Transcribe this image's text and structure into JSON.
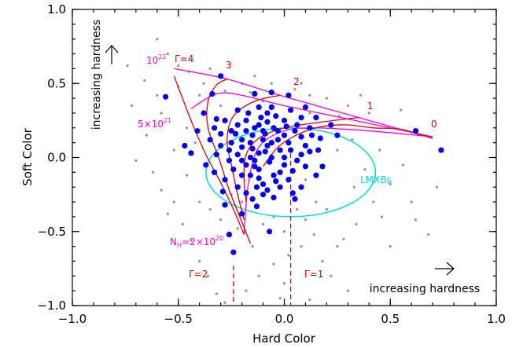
{
  "chart_data": {
    "type": "scatter",
    "xlabel": "Hard Color",
    "ylabel": "Soft Color",
    "xlim": [
      -1.0,
      1.0
    ],
    "ylim": [
      -1.0,
      1.0
    ],
    "x_ticks": [
      "−1.0",
      "−0.5",
      "0.0",
      "0.5",
      "1.0"
    ],
    "y_ticks": [
      "−1.0",
      "−0.5",
      "0.0",
      "0.5",
      "1.0"
    ],
    "x_tick_values": [
      -1.0,
      -0.5,
      0.0,
      0.5,
      1.0
    ],
    "y_tick_values": [
      -1.0,
      -0.5,
      0.0,
      0.5,
      1.0
    ],
    "grid": false,
    "annotations": {
      "increasing_hardness_y": "increasing hardness",
      "increasing_hardness_x": "increasing hardness",
      "lmxb_label": "LMXBs",
      "gamma_4": "Γ=4",
      "gamma_3": "3",
      "gamma_2": "2",
      "gamma_1": "1",
      "gamma_0": "0",
      "nh_1e22": "10",
      "nh_1e22_sup": "22",
      "nh_5e21": "5×10",
      "nh_5e21_sup": "21",
      "nh_2e20_prefix": "N",
      "nh_2e20_sub": "H",
      "nh_2e20_mid": "=2×10",
      "nh_2e20_sup": "20",
      "gamma2_dashed": "Γ=2",
      "gamma1_dashed": "Γ=1"
    },
    "colors": {
      "sources_main": "#0000ee",
      "sources_background": "#9a9a9a",
      "gamma_tracks": "#dd0000",
      "nh_tracks": "#ee00ee",
      "lmxb_ellipse": "#00dddd"
    },
    "lmxb_ellipse": {
      "cx": 0.03,
      "cy": -0.1,
      "rx": 0.4,
      "ry": 0.3
    },
    "gamma_tracks": [
      {
        "name": "Γ=4",
        "points": [
          [
            -0.52,
            0.55
          ],
          [
            -0.44,
            0.25
          ],
          [
            -0.37,
            0.02
          ],
          [
            -0.3,
            -0.17
          ],
          [
            -0.24,
            -0.35
          ],
          [
            -0.19,
            -0.52
          ]
        ]
      },
      {
        "name": "3",
        "points": [
          [
            -0.27,
            0.53
          ],
          [
            -0.32,
            0.49
          ],
          [
            -0.36,
            0.38
          ],
          [
            -0.36,
            0.2
          ],
          [
            -0.31,
            0.0
          ],
          [
            -0.26,
            -0.22
          ],
          [
            -0.21,
            -0.4
          ],
          [
            -0.16,
            -0.58
          ]
        ]
      },
      {
        "name": "2",
        "points": [
          [
            -0.02,
            0.42
          ],
          [
            -0.14,
            0.38
          ],
          [
            -0.24,
            0.28
          ],
          [
            -0.27,
            0.12
          ],
          [
            -0.25,
            -0.05
          ],
          [
            -0.22,
            -0.25
          ],
          [
            -0.19,
            -0.42
          ]
        ]
      },
      {
        "name": "1",
        "points": [
          [
            0.35,
            0.27
          ],
          [
            0.18,
            0.24
          ],
          [
            0.0,
            0.2
          ],
          [
            -0.12,
            0.13
          ],
          [
            -0.18,
            0.02
          ],
          [
            -0.19,
            -0.14
          ],
          [
            -0.18,
            -0.3
          ]
        ]
      },
      {
        "name": "0",
        "points": [
          [
            0.7,
            0.13
          ],
          [
            0.55,
            0.19
          ],
          [
            0.42,
            0.2
          ],
          [
            0.3,
            0.22
          ],
          [
            0.18,
            0.21
          ],
          [
            0.07,
            0.16
          ],
          [
            -0.03,
            0.07
          ],
          [
            -0.1,
            -0.06
          ]
        ]
      }
    ],
    "nh_tracks": [
      {
        "name": "1e22",
        "points": [
          [
            -0.52,
            0.6
          ],
          [
            -0.27,
            0.53
          ],
          [
            -0.02,
            0.42
          ],
          [
            0.35,
            0.27
          ],
          [
            0.7,
            0.13
          ]
        ]
      },
      {
        "name": "5e21",
        "points": [
          [
            -0.44,
            0.33
          ],
          [
            -0.32,
            0.43
          ],
          [
            -0.2,
            0.42
          ],
          [
            0.0,
            0.35
          ],
          [
            0.3,
            0.26
          ],
          [
            0.7,
            0.14
          ]
        ]
      },
      {
        "name": "2e20",
        "points": [
          [
            -0.19,
            -0.52
          ],
          [
            -0.17,
            -0.18
          ],
          [
            -0.12,
            0.07
          ],
          [
            0.0,
            0.18
          ],
          [
            0.15,
            0.2
          ],
          [
            0.4,
            0.18
          ],
          [
            0.7,
            0.14
          ]
        ]
      }
    ],
    "dashed_lines": [
      {
        "name": "Γ=2",
        "x": -0.24,
        "y_from": -0.73,
        "y_to": -1.0
      },
      {
        "name": "Γ=1",
        "x": 0.03,
        "y_from": 0.03,
        "y_to": -1.0
      }
    ],
    "series": [
      {
        "name": "sources",
        "points": [
          [
            0.74,
            0.05
          ],
          [
            0.62,
            0.18
          ],
          [
            -0.56,
            0.41
          ],
          [
            -0.34,
            0.43
          ],
          [
            -0.3,
            0.55
          ],
          [
            -0.14,
            0.43
          ],
          [
            -0.12,
            0.34
          ],
          [
            -0.06,
            0.44
          ],
          [
            0.02,
            0.42
          ],
          [
            0.1,
            0.34
          ],
          [
            -0.22,
            0.32
          ],
          [
            -0.08,
            0.3
          ],
          [
            0.08,
            0.27
          ],
          [
            0.22,
            0.22
          ],
          [
            -0.32,
            0.26
          ],
          [
            -0.25,
            0.18
          ],
          [
            -0.3,
            0.16
          ],
          [
            -0.41,
            0.18
          ],
          [
            -0.47,
            0.08
          ],
          [
            -0.44,
            0.03
          ],
          [
            -0.37,
            -0.05
          ],
          [
            -0.33,
            -0.1
          ],
          [
            -0.28,
            -0.15
          ],
          [
            -0.22,
            -0.2
          ],
          [
            -0.18,
            -0.24
          ],
          [
            -0.15,
            -0.28
          ],
          [
            -0.13,
            -0.33
          ],
          [
            -0.2,
            -0.38
          ],
          [
            -0.28,
            -0.32
          ],
          [
            -0.05,
            -0.27
          ],
          [
            0.05,
            -0.28
          ],
          [
            0.08,
            -0.2
          ],
          [
            0.15,
            -0.12
          ],
          [
            0.18,
            -0.06
          ],
          [
            0.12,
            0.04
          ],
          [
            0.17,
            0.13
          ],
          [
            0.25,
            0.15
          ],
          [
            -0.07,
            -0.5
          ],
          [
            -0.24,
            -0.64
          ],
          [
            -0.26,
            -0.52
          ],
          [
            -0.25,
            0.1
          ],
          [
            -0.2,
            0.12
          ],
          [
            -0.15,
            0.15
          ],
          [
            -0.1,
            0.18
          ],
          [
            -0.05,
            0.2
          ],
          [
            0.0,
            0.15
          ],
          [
            0.05,
            0.18
          ],
          [
            0.02,
            0.1
          ],
          [
            -0.02,
            0.05
          ],
          [
            -0.08,
            0.08
          ],
          [
            -0.12,
            0.03
          ],
          [
            -0.16,
            0.0
          ],
          [
            -0.22,
            0.02
          ],
          [
            -0.18,
            -0.05
          ],
          [
            -0.12,
            -0.08
          ],
          [
            -0.07,
            -0.03
          ],
          [
            0.0,
            -0.05
          ],
          [
            0.06,
            -0.02
          ],
          [
            0.1,
            0.08
          ],
          [
            0.08,
            0.14
          ],
          [
            -0.03,
            0.12
          ],
          [
            -0.1,
            0.12
          ],
          [
            -0.15,
            0.06
          ],
          [
            -0.2,
            0.07
          ],
          [
            -0.05,
            -0.12
          ],
          [
            0.02,
            -0.15
          ],
          [
            -0.1,
            -0.18
          ],
          [
            -0.16,
            -0.12
          ],
          [
            -0.24,
            -0.08
          ],
          [
            0.12,
            0.2
          ],
          [
            -0.28,
            0.25
          ],
          [
            -0.18,
            0.25
          ],
          [
            -0.08,
            0.24
          ],
          [
            0.0,
            0.25
          ],
          [
            0.06,
            0.22
          ],
          [
            -0.14,
            0.2
          ],
          [
            -0.03,
            0.18
          ],
          [
            -0.23,
            0.16
          ],
          [
            -0.3,
            0.08
          ],
          [
            -0.35,
            0.12
          ],
          [
            0.03,
            0.05
          ],
          [
            -0.06,
            0.0
          ],
          [
            -0.14,
            -0.02
          ],
          [
            -0.09,
            0.04
          ],
          [
            0.04,
            -0.09
          ],
          [
            -0.02,
            -0.2
          ],
          [
            -0.12,
            -0.14
          ],
          [
            -0.2,
            -0.12
          ],
          [
            -0.26,
            -0.02
          ],
          [
            -0.04,
            0.28
          ],
          [
            -0.18,
            0.18
          ],
          [
            -0.11,
            0.27
          ],
          [
            0.03,
            0.32
          ],
          [
            -0.02,
            -0.1
          ],
          [
            -0.08,
            -0.22
          ],
          [
            0.1,
            -0.06
          ],
          [
            -0.16,
            0.1
          ],
          [
            -0.06,
            0.1
          ],
          [
            0.08,
            0.02
          ],
          [
            -0.12,
            0.22
          ],
          [
            -0.22,
            0.22
          ],
          [
            -0.26,
            0.05
          ],
          [
            -0.32,
            0.02
          ],
          [
            -0.04,
            -0.16
          ],
          [
            0.0,
            0.0
          ],
          [
            -0.14,
            -0.06
          ],
          [
            0.13,
            0.15
          ],
          [
            -0.09,
            0.16
          ],
          [
            -0.2,
            -0.02
          ],
          [
            -0.1,
            -0.25
          ],
          [
            0.15,
            0.27
          ],
          [
            -0.38,
            0.3
          ],
          [
            -0.33,
            0.2
          ],
          [
            0.16,
            0.05
          ],
          [
            -0.29,
            -0.23
          ],
          [
            -0.06,
            0.34
          ],
          [
            0.04,
            -0.24
          ],
          [
            -0.17,
            0.3
          ],
          [
            0.01,
            0.21
          ],
          [
            -0.13,
            -0.2
          ]
        ]
      },
      {
        "name": "background",
        "points": [
          [
            -0.6,
            0.8
          ],
          [
            -0.55,
            0.7
          ],
          [
            -0.5,
            0.62
          ],
          [
            -0.45,
            0.58
          ],
          [
            -0.38,
            0.5
          ],
          [
            -0.28,
            0.45
          ],
          [
            -0.2,
            0.5
          ],
          [
            -0.14,
            0.55
          ],
          [
            -0.06,
            0.5
          ],
          [
            0.05,
            0.46
          ],
          [
            0.12,
            0.42
          ],
          [
            0.2,
            0.4
          ],
          [
            -0.72,
            0.35
          ],
          [
            -0.65,
            0.15
          ],
          [
            -0.7,
            -0.02
          ],
          [
            -0.62,
            -0.1
          ],
          [
            -0.58,
            -0.22
          ],
          [
            -0.52,
            -0.3
          ],
          [
            -0.48,
            -0.45
          ],
          [
            -0.44,
            -0.56
          ],
          [
            -0.4,
            -0.7
          ],
          [
            -0.36,
            -0.8
          ],
          [
            -0.32,
            -0.92
          ],
          [
            -0.28,
            -0.98
          ],
          [
            -0.18,
            -0.9
          ],
          [
            -0.12,
            -0.8
          ],
          [
            -0.05,
            -0.72
          ],
          [
            0.02,
            -0.66
          ],
          [
            0.08,
            -0.6
          ],
          [
            0.14,
            -0.52
          ],
          [
            0.18,
            -0.7
          ],
          [
            0.22,
            -0.8
          ],
          [
            0.28,
            -0.55
          ],
          [
            0.34,
            -0.45
          ],
          [
            0.42,
            -0.3
          ],
          [
            0.5,
            -0.18
          ],
          [
            0.56,
            -0.05
          ],
          [
            0.6,
            -0.3
          ],
          [
            0.68,
            -0.52
          ],
          [
            0.72,
            -0.2
          ],
          [
            0.45,
            0.05
          ],
          [
            0.4,
            0.3
          ],
          [
            0.3,
            0.35
          ],
          [
            0.25,
            0.05
          ],
          [
            0.33,
            -0.2
          ],
          [
            0.2,
            -0.35
          ],
          [
            0.1,
            -0.42
          ],
          [
            -0.05,
            -0.4
          ],
          [
            -0.15,
            -0.6
          ],
          [
            -0.22,
            -0.48
          ],
          [
            -0.3,
            -0.42
          ],
          [
            -0.4,
            -0.3
          ],
          [
            -0.46,
            -0.12
          ],
          [
            -0.52,
            0.05
          ],
          [
            -0.46,
            0.2
          ],
          [
            -0.4,
            0.42
          ],
          [
            -0.35,
            0.6
          ],
          [
            -0.66,
            0.52
          ],
          [
            -0.74,
            0.62
          ],
          [
            -0.58,
            0.3
          ],
          [
            -0.2,
            -0.3
          ],
          [
            0.06,
            -0.35
          ],
          [
            0.12,
            0.3
          ],
          [
            0.26,
            0.28
          ],
          [
            0.32,
            0.12
          ],
          [
            0.38,
            -0.08
          ],
          [
            0.46,
            -0.4
          ],
          [
            0.55,
            0.32
          ],
          [
            -0.1,
            0.38
          ],
          [
            -0.3,
            0.35
          ],
          [
            0.0,
            -0.5
          ],
          [
            -0.1,
            -0.45
          ],
          [
            0.1,
            -0.15
          ],
          [
            -0.42,
            0.1
          ],
          [
            -0.55,
            -0.38
          ],
          [
            0.5,
            -0.6
          ],
          [
            0.25,
            -0.6
          ],
          [
            0.0,
            -0.85
          ],
          [
            -0.02,
            -0.95
          ],
          [
            0.12,
            -0.96
          ],
          [
            -0.35,
            -0.35
          ],
          [
            -0.25,
            -0.25
          ],
          [
            0.3,
            -0.9
          ],
          [
            0.15,
            -0.3
          ],
          [
            -0.6,
            0.42
          ],
          [
            0.62,
            -0.42
          ],
          [
            0.08,
            0.5
          ],
          [
            -0.16,
            0.44
          ],
          [
            0.36,
            0.42
          ],
          [
            -0.5,
            0.48
          ]
        ]
      }
    ]
  }
}
